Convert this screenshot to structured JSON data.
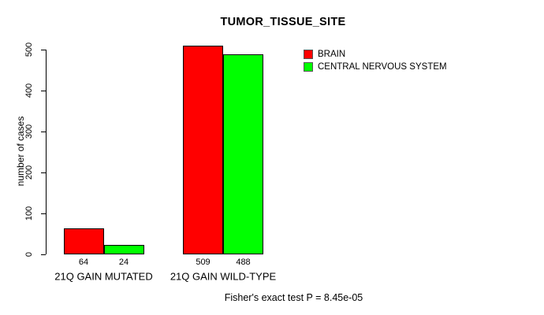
{
  "chart_data": {
    "type": "bar",
    "title": "TUMOR_TISSUE_SITE",
    "ylabel": "number of cases",
    "xlabel": "",
    "categories": [
      "21Q GAIN MUTATED",
      "21Q GAIN WILD-TYPE"
    ],
    "series": [
      {
        "name": "BRAIN",
        "color": "#ff0000",
        "values": [
          64,
          509
        ]
      },
      {
        "name": "CENTRAL NERVOUS SYSTEM",
        "color": "#00ff00",
        "values": [
          24,
          488
        ]
      }
    ],
    "ylim": [
      0,
      500
    ],
    "yticks": [
      0,
      100,
      200,
      300,
      400,
      500
    ],
    "grid": false,
    "legend_position": "top-right",
    "bar_value_labels_visible": true,
    "caption": "Fisher's exact test P = 8.45e-05"
  }
}
